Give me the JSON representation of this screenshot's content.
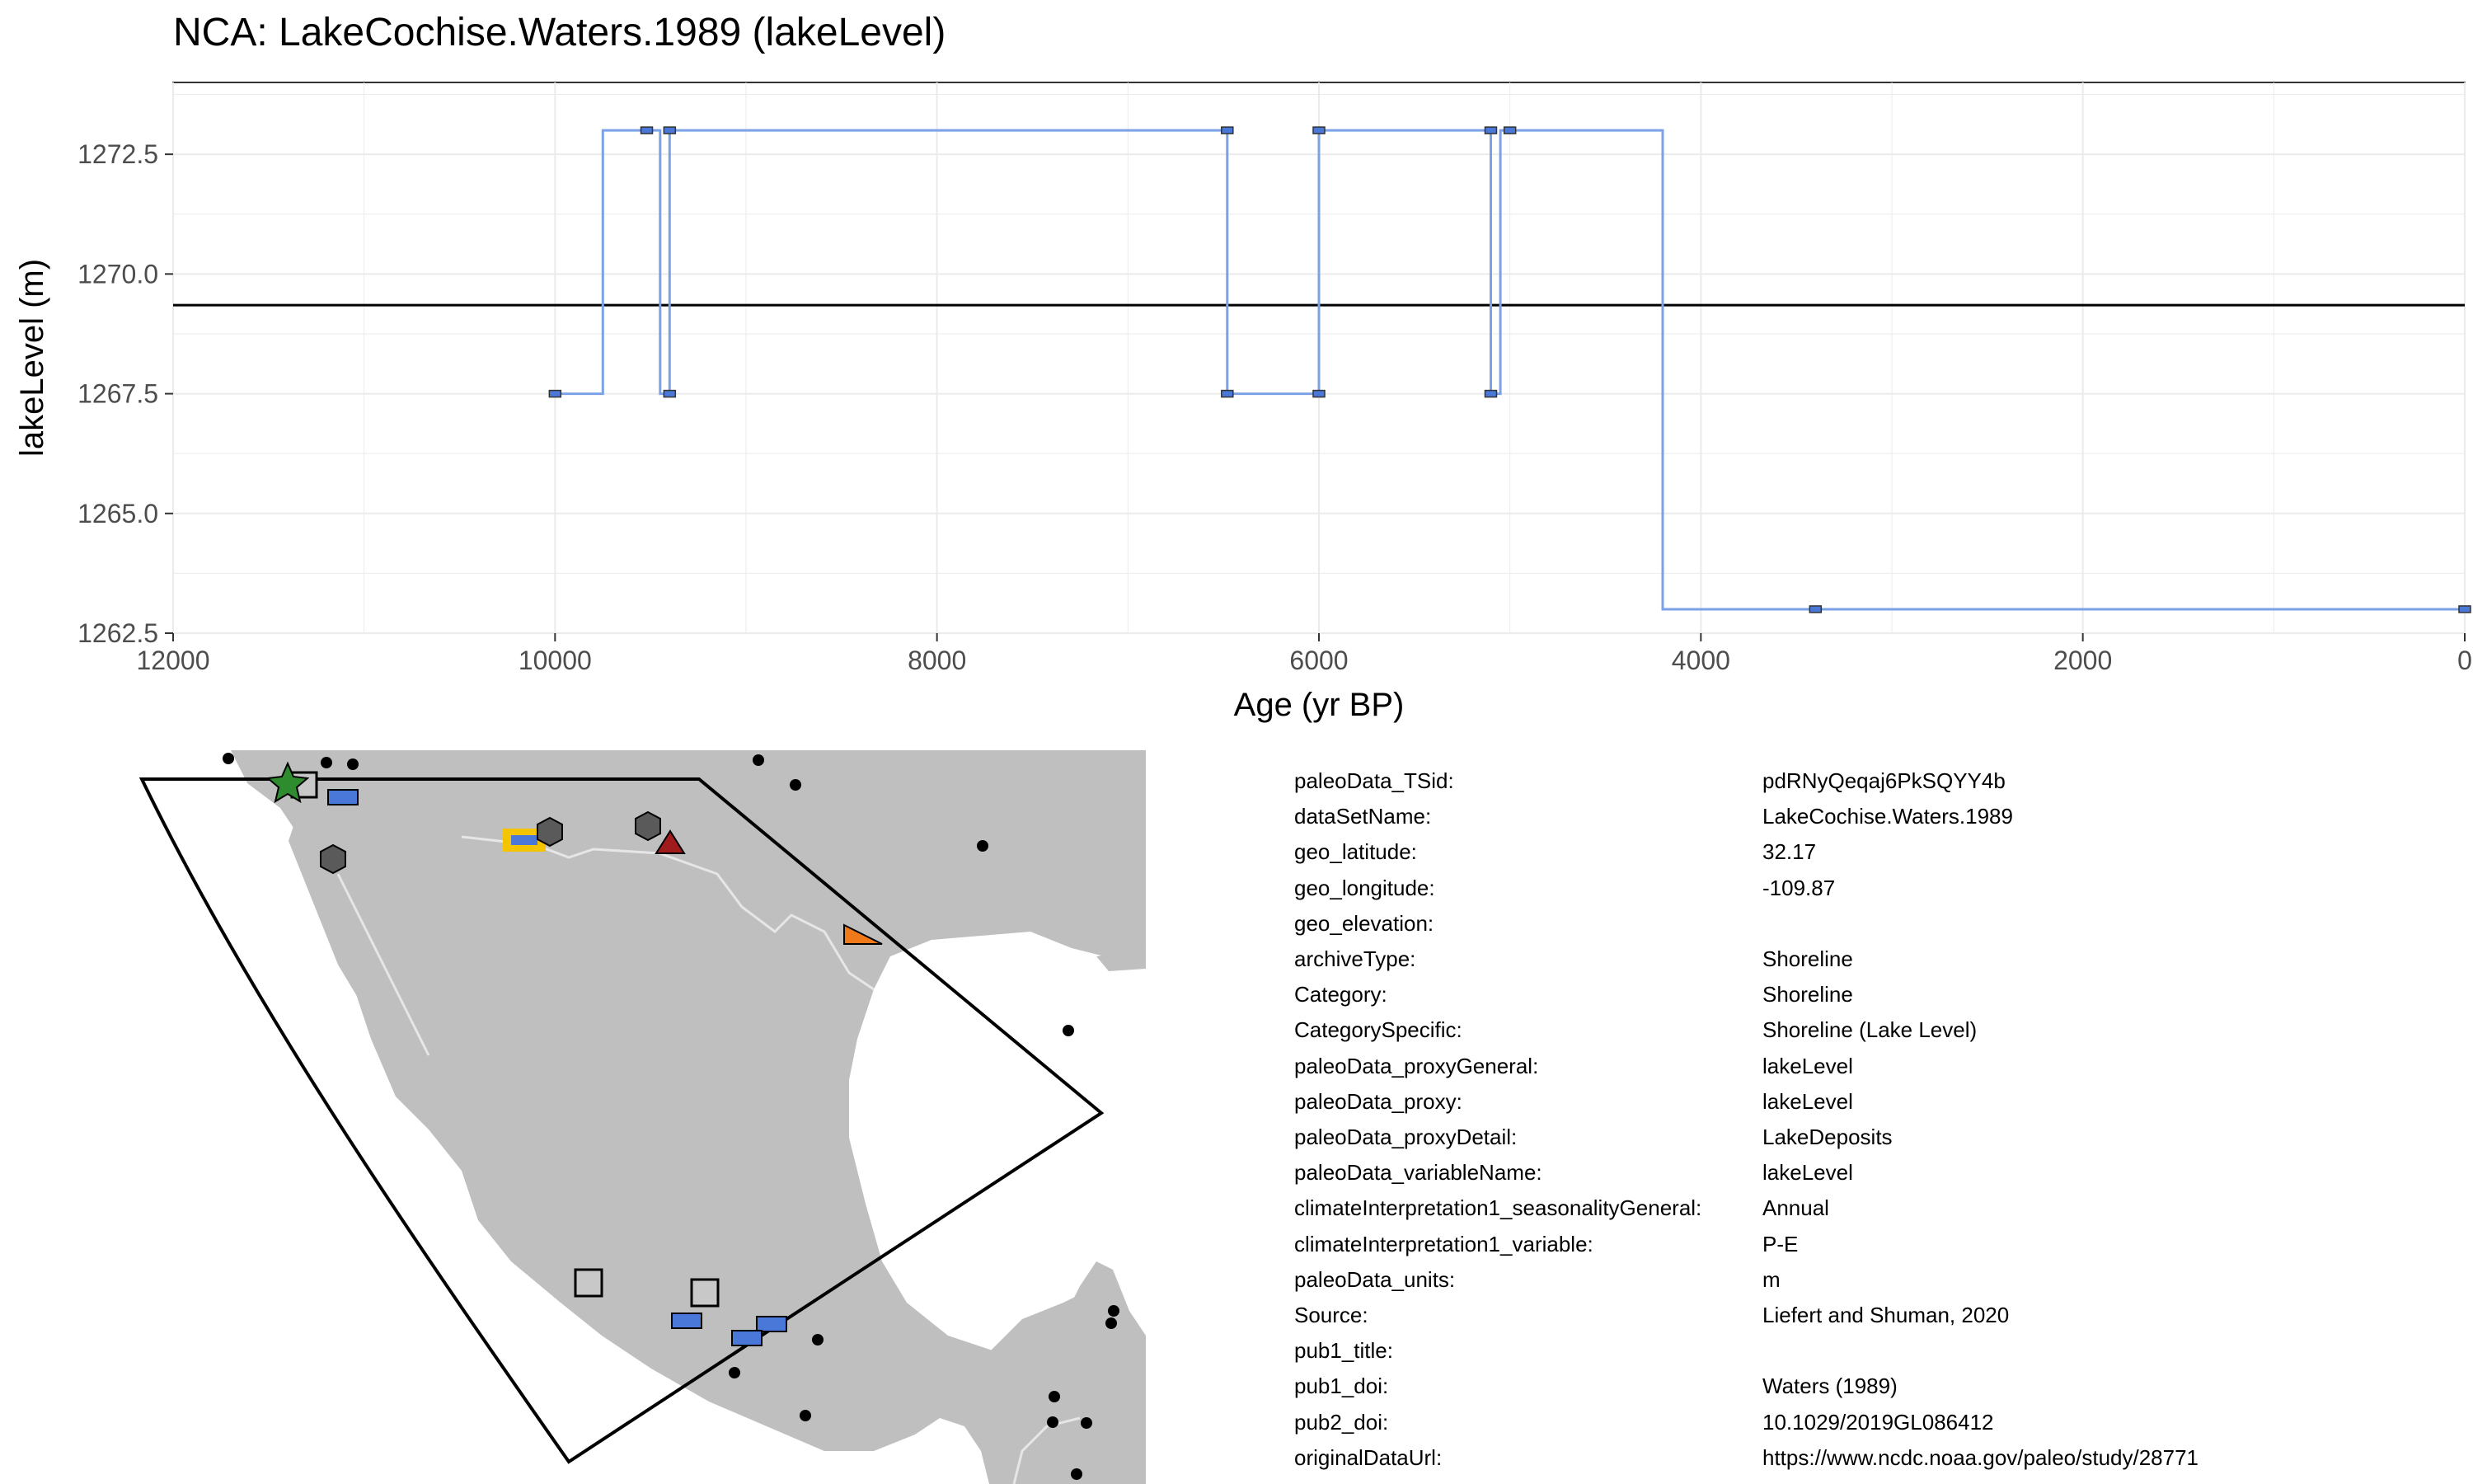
{
  "chart_data": {
    "type": "line",
    "title": "NCA: LakeCochise.Waters.1989 (lakeLevel)",
    "xlabel": "Age (yr BP)",
    "ylabel": "lakeLevel (m)",
    "xlim": [
      12000,
      0
    ],
    "ylim": [
      1262.5,
      1274.0
    ],
    "x_reversed": true,
    "x_ticks": [
      "12000",
      "10000",
      "8000",
      "6000",
      "4000",
      "2000",
      "0"
    ],
    "x_tick_values": [
      12000,
      10000,
      8000,
      6000,
      4000,
      2000,
      0
    ],
    "y_ticks": [
      "1262.5",
      "1265.0",
      "1267.5",
      "1270.0",
      "1272.5"
    ],
    "y_tick_values": [
      1262.5,
      1265.0,
      1267.5,
      1270.0,
      1272.5
    ],
    "grid": true,
    "reference_line": 1269.35,
    "series": [
      {
        "step_line": [
          [
            10000,
            1267.5
          ],
          [
            9750,
            1267.5
          ],
          [
            9750,
            1273
          ],
          [
            9450,
            1273
          ],
          [
            9450,
            1267.5
          ],
          [
            9400,
            1267.5
          ],
          [
            9400,
            1273
          ],
          [
            6480,
            1273
          ],
          [
            6480,
            1267.5
          ],
          [
            6000,
            1267.5
          ],
          [
            6000,
            1273
          ],
          [
            5100,
            1273
          ],
          [
            5100,
            1267.5
          ],
          [
            5050,
            1267.5
          ],
          [
            5050,
            1273
          ],
          [
            4200,
            1273
          ],
          [
            4200,
            1263
          ],
          [
            0,
            1263
          ]
        ],
        "points": [
          [
            10000,
            1267.5
          ],
          [
            9520,
            1273
          ],
          [
            9400,
            1273
          ],
          [
            9400,
            1267.5
          ],
          [
            6480,
            1273
          ],
          [
            6480,
            1267.5
          ],
          [
            6000,
            1273
          ],
          [
            6000,
            1267.5
          ],
          [
            5100,
            1273
          ],
          [
            5100,
            1267.5
          ],
          [
            5000,
            1273
          ],
          [
            3400,
            1263
          ],
          [
            0,
            1263
          ]
        ]
      }
    ],
    "colors": {
      "line": "#7ba1e6",
      "point_fill": "#4a78d8",
      "reference": "#000000",
      "grid": "#ebebeb"
    }
  },
  "map": {
    "land_color": "#bfbfbf",
    "border_color": "#e6e6e6",
    "legend_markers": [
      {
        "shape": "star",
        "color": "#2e8b2e"
      },
      {
        "shape": "square",
        "color": "#c8c8c8"
      },
      {
        "shape": "rect",
        "color": "#4a78d8"
      },
      {
        "shape": "hexagon",
        "color": "#5a5a5a"
      },
      {
        "shape": "triangle",
        "color": "#a01c1c"
      },
      {
        "shape": "wedge",
        "color": "#f07a1a"
      },
      {
        "shape": "highlight-rect",
        "color": "#f5c400"
      },
      {
        "shape": "dot",
        "color": "#000000"
      }
    ]
  },
  "metadata": [
    {
      "key": "paleoData_TSid:",
      "value": "pdRNyQeqaj6PkSQYY4b"
    },
    {
      "key": "dataSetName:",
      "value": "LakeCochise.Waters.1989"
    },
    {
      "key": "geo_latitude:",
      "value": "32.17"
    },
    {
      "key": "geo_longitude:",
      "value": "-109.87"
    },
    {
      "key": "geo_elevation:",
      "value": ""
    },
    {
      "key": "archiveType:",
      "value": "Shoreline"
    },
    {
      "key": "Category:",
      "value": "Shoreline"
    },
    {
      "key": "CategorySpecific:",
      "value": "Shoreline (Lake Level)"
    },
    {
      "key": "paleoData_proxyGeneral:",
      "value": "lakeLevel"
    },
    {
      "key": "paleoData_proxy:",
      "value": "lakeLevel"
    },
    {
      "key": "paleoData_proxyDetail:",
      "value": "LakeDeposits"
    },
    {
      "key": "paleoData_variableName:",
      "value": "lakeLevel"
    },
    {
      "key": "climateInterpretation1_seasonalityGeneral:",
      "value": "Annual"
    },
    {
      "key": "climateInterpretation1_variable:",
      "value": "P-E"
    },
    {
      "key": "paleoData_units:",
      "value": "m"
    },
    {
      "key": "Source:",
      "value": "Liefert and Shuman, 2020"
    },
    {
      "key": "pub1_title:",
      "value": ""
    },
    {
      "key": "pub1_doi:",
      "value": "Waters (1989)"
    },
    {
      "key": "pub2_doi:",
      "value": "10.1029/2019GL086412"
    },
    {
      "key": "originalDataUrl:",
      "value": "https://www.ncdc.noaa.gov/paleo/study/28771"
    }
  ]
}
